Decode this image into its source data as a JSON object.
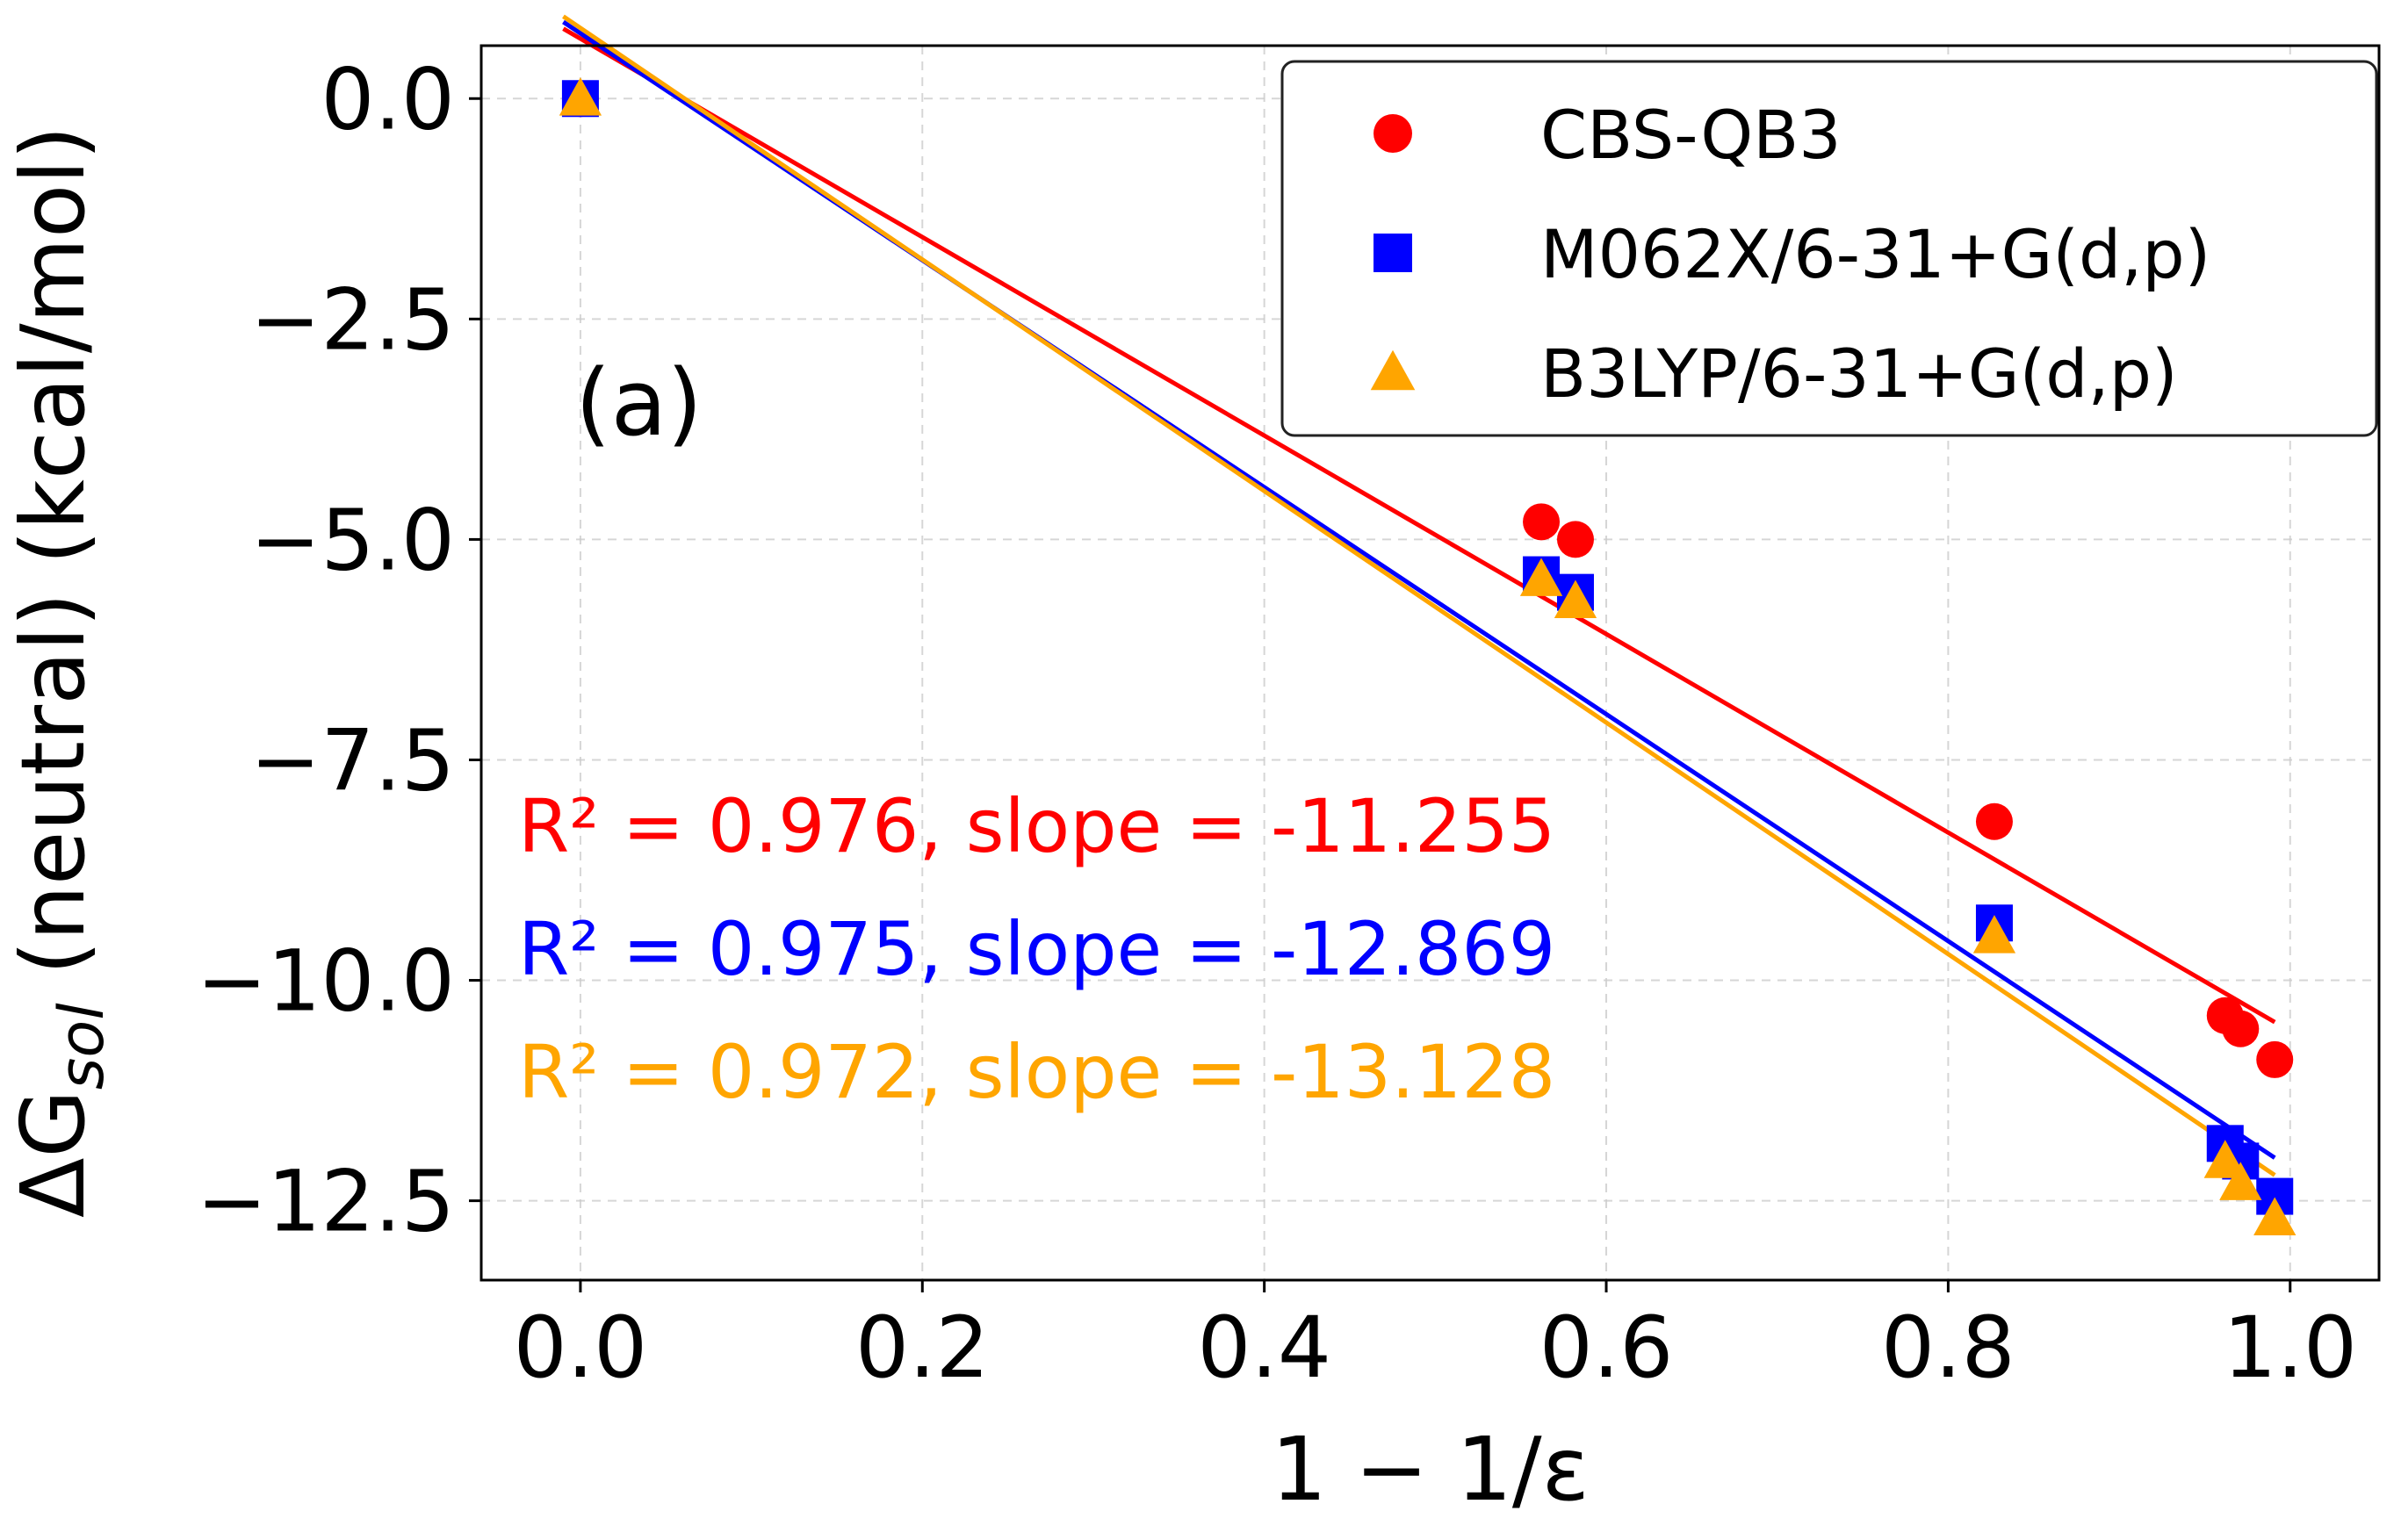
{
  "chart_data": {
    "type": "scatter",
    "panel_label": "(a)",
    "xlabel": "1 − 1/ε",
    "ylabel": "ΔG",
    "ylabel_sub": "sol",
    "ylabel_suffix": " (neutral) (kcal/mol)",
    "xlim": [
      -0.058,
      1.052
    ],
    "ylim": [
      -13.4,
      0.6
    ],
    "x_ticks": [
      0.0,
      0.2,
      0.4,
      0.6,
      0.8,
      1.0
    ],
    "x_tick_labels": [
      "0.0",
      "0.2",
      "0.4",
      "0.6",
      "0.8",
      "1.0"
    ],
    "y_ticks": [
      0.0,
      -2.5,
      -5.0,
      -7.5,
      -10.0,
      -12.5
    ],
    "y_tick_labels": [
      "0.0",
      "−2.5",
      "−5.0",
      "−7.5",
      "−10.0",
      "−12.5"
    ],
    "grid": true,
    "legend_position": "top-right",
    "series": [
      {
        "name": "CBS-QB3",
        "color": "#ff0000",
        "marker": "circle",
        "x": [
          0.0,
          0.562,
          0.582,
          0.827,
          0.962,
          0.971,
          0.991
        ],
        "y": [
          0.0,
          -4.8,
          -5.0,
          -8.2,
          -10.4,
          -10.55,
          -10.9
        ],
        "fit": {
          "slope": -11.255,
          "intercept": 0.68,
          "x_start": -0.01,
          "x_end": 0.991
        },
        "annotation": "R² = 0.976, slope = -11.255"
      },
      {
        "name": "M062X/6-31+G(d,p)",
        "color": "#0000ff",
        "marker": "square",
        "x": [
          0.0,
          0.562,
          0.582,
          0.827,
          0.962,
          0.971,
          0.991
        ],
        "y": [
          0.0,
          -5.4,
          -5.6,
          -9.35,
          -11.85,
          -12.05,
          -12.45
        ],
        "fit": {
          "slope": -12.869,
          "intercept": 0.74,
          "x_start": -0.01,
          "x_end": 0.991
        },
        "annotation": "R² = 0.975, slope = -12.869"
      },
      {
        "name": "B3LYP/6-31+G(d,p)",
        "color": "#ffa500",
        "marker": "triangle",
        "x": [
          0.0,
          0.562,
          0.582,
          0.827,
          0.962,
          0.971,
          0.991
        ],
        "y": [
          0.0,
          -5.45,
          -5.7,
          -9.5,
          -12.05,
          -12.3,
          -12.7
        ],
        "fit": {
          "slope": -13.128,
          "intercept": 0.8,
          "x_start": -0.01,
          "x_end": 0.991
        },
        "annotation": "R² = 0.972, slope = -13.128"
      }
    ]
  }
}
